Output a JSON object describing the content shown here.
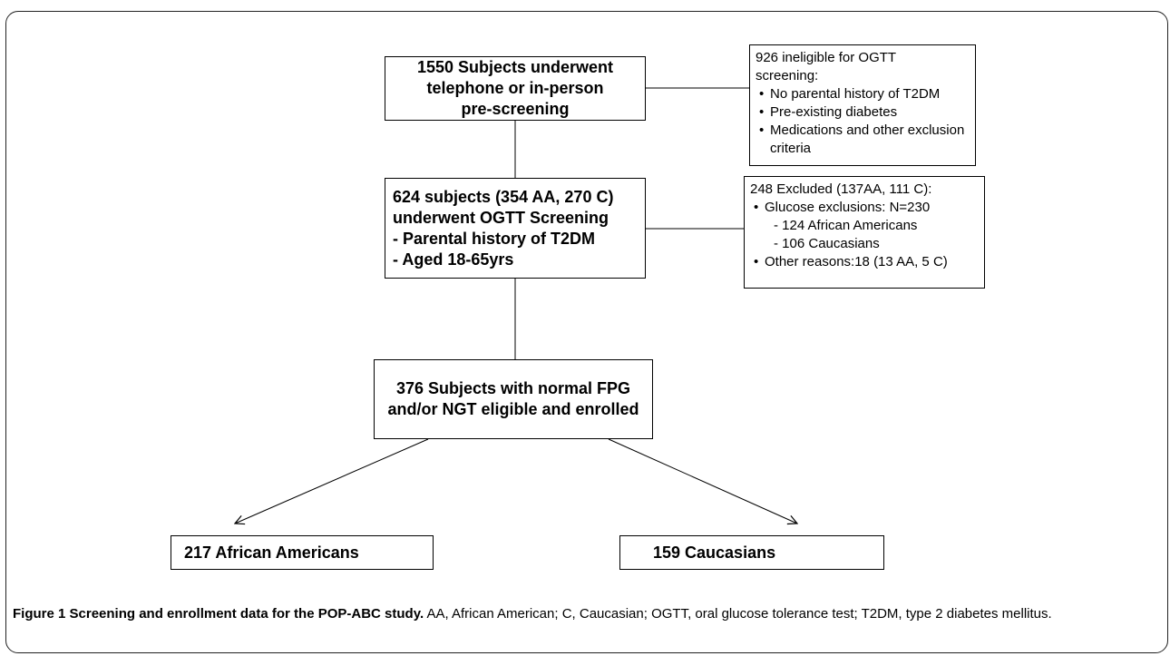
{
  "box_prescreen": {
    "lines": [
      "1550 Subjects underwent",
      "telephone or in-person",
      "pre-screening"
    ]
  },
  "box_ineligible": {
    "heading_lines": [
      "926 ineligible for OGTT",
      "screening:"
    ],
    "items": [
      "No parental history of T2DM",
      "Pre-existing diabetes",
      "Medications and other exclusion criteria"
    ]
  },
  "box_ogtt": {
    "lines": [
      "624 subjects (354 AA, 270 C)",
      "underwent OGTT Screening",
      "- Parental history of T2DM",
      "- Aged  18-65yrs"
    ]
  },
  "box_excluded": {
    "heading": "248 Excluded (137AA, 111 C):",
    "item1": "Glucose exclusions: N=230",
    "sub1": "- 124 African Americans",
    "sub2": "- 106 Caucasians",
    "item2": "Other  reasons:18 (13 AA, 5 C)"
  },
  "box_enrolled": {
    "lines": [
      "376 Subjects with normal FPG",
      "and/or NGT eligible and enrolled"
    ]
  },
  "box_african_americans": {
    "label": "217 African Americans"
  },
  "box_caucasians": {
    "label": "159 Caucasians"
  },
  "caption": {
    "title": "Figure 1 Screening and enrollment data for the POP-ABC study.",
    "text": " AA, African American; C, Caucasian; OGTT, oral glucose tolerance test; T2DM, type 2 diabetes mellitus."
  }
}
